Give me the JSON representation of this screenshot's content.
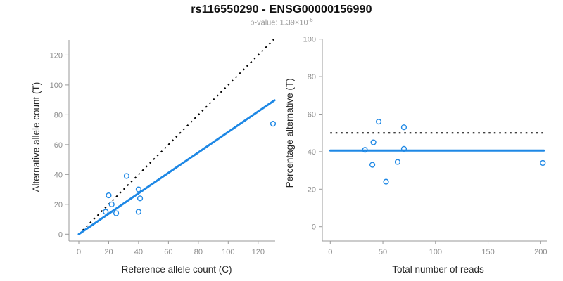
{
  "header": {
    "title": "rs116550290 - ENSG00000156990",
    "subtitle_prefix": "p-value: 1.39×10",
    "subtitle_exponent": "-6"
  },
  "colors": {
    "accent_blue": "#1e88e5",
    "dotted_line_black": "#000000",
    "axis_gray": "#999999",
    "tick_label_gray": "#8c8c8c",
    "axis_title_color": "#262626",
    "subtitle_gray": "#9a9a9a",
    "background": "#ffffff"
  },
  "chart_data": [
    {
      "type": "scatter",
      "panel": "left",
      "xlabel": "Reference allele count (C)",
      "ylabel": "Alternative allele count (T)",
      "xlim": [
        0,
        131
      ],
      "ylim": [
        0,
        130
      ],
      "xticks": [
        0,
        20,
        40,
        60,
        80,
        100,
        120
      ],
      "yticks": [
        0,
        20,
        40,
        60,
        80,
        100,
        120
      ],
      "grid": false,
      "marker": "open-circle",
      "points": [
        [
          20,
          26
        ],
        [
          32,
          39
        ],
        [
          40,
          30
        ],
        [
          41,
          24
        ],
        [
          22,
          20
        ],
        [
          18,
          15
        ],
        [
          25,
          14
        ],
        [
          40,
          15
        ],
        [
          130,
          74
        ]
      ],
      "lines": [
        {
          "name": "identity-line",
          "style": "dotted",
          "color": "#000000",
          "from": [
            0,
            0
          ],
          "to": [
            130.5,
            130.5
          ]
        },
        {
          "name": "fitted-proportion-line",
          "style": "solid",
          "color": "#1e88e5",
          "from": [
            0,
            0
          ],
          "to": [
            131,
            89.7
          ]
        }
      ]
    },
    {
      "type": "scatter",
      "panel": "right",
      "xlabel": "Total number of reads",
      "ylabel": "Percentage alternative (T)",
      "xlim": [
        0,
        205
      ],
      "ylim": [
        0,
        100
      ],
      "xticks": [
        0,
        50,
        100,
        150,
        200
      ],
      "yticks": [
        0,
        20,
        40,
        60,
        80,
        100
      ],
      "grid": false,
      "marker": "open-circle",
      "points": [
        [
          46,
          56
        ],
        [
          70,
          53
        ],
        [
          41,
          45
        ],
        [
          33,
          41
        ],
        [
          70,
          41.5
        ],
        [
          40,
          33
        ],
        [
          64,
          34.5
        ],
        [
          202,
          34
        ],
        [
          53,
          24
        ]
      ],
      "lines": [
        {
          "name": "expected-50-percent-line",
          "style": "dotted",
          "color": "#000000",
          "from": [
            0,
            50
          ],
          "to": [
            203,
            50
          ]
        },
        {
          "name": "fitted-proportion-line",
          "style": "solid",
          "color": "#1e88e5",
          "from": [
            0,
            40.6
          ],
          "to": [
            203,
            40.6
          ]
        }
      ]
    }
  ]
}
